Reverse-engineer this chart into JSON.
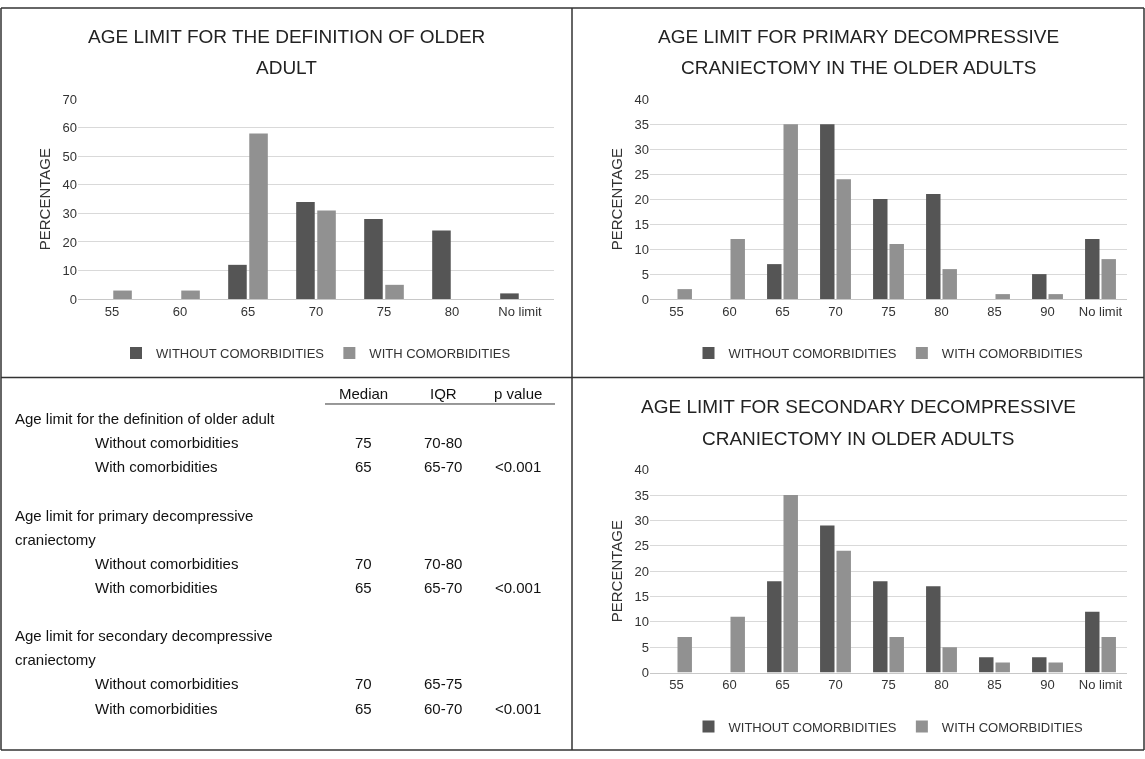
{
  "chart_data": [
    {
      "type": "bar",
      "title": "AGE LIMIT FOR THE DEFINITION OF OLDER ADULT",
      "ylabel": "PERCENTAGE",
      "categories": [
        "55",
        "60",
        "65",
        "70",
        "75",
        "80",
        "No limit"
      ],
      "series": [
        {
          "name": "WITHOUT COMORBIDITIES",
          "color": "#555555",
          "values": [
            0,
            0,
            12,
            34,
            28,
            24,
            2
          ]
        },
        {
          "name": "WITH COMORBIDITIES",
          "color": "#919191",
          "values": [
            3,
            3,
            58,
            31,
            5,
            0,
            0
          ]
        }
      ],
      "ylim": [
        0,
        70
      ],
      "yticks": [
        0,
        10,
        20,
        30,
        40,
        50,
        60,
        70
      ],
      "grid": "y",
      "legend": "bottom"
    },
    {
      "type": "bar",
      "title": "AGE LIMIT FOR PRIMARY DECOMPRESSIVE CRANIECTOMY IN THE OLDER ADULTS",
      "ylabel": "PERCENTAGE",
      "categories": [
        "55",
        "60",
        "65",
        "70",
        "75",
        "80",
        "85",
        "90",
        "No limit"
      ],
      "series": [
        {
          "name": "WITHOUT COMORBIDITIES",
          "color": "#555555",
          "values": [
            0,
            0,
            7,
            35,
            20,
            21,
            0,
            5,
            12
          ]
        },
        {
          "name": "WITH COMORBIDITIES",
          "color": "#919191",
          "values": [
            2,
            12,
            35,
            24,
            11,
            6,
            1,
            1,
            8
          ]
        }
      ],
      "ylim": [
        0,
        40
      ],
      "yticks": [
        0,
        5,
        10,
        15,
        20,
        25,
        30,
        35,
        40
      ],
      "grid": "y",
      "legend": "bottom"
    },
    {
      "type": "other",
      "categories": [
        "Median",
        "IQR",
        "p value"
      ],
      "y_categories": [
        "Age limit for the definition of older adult",
        "Without comorbidities",
        "With comorbidities",
        "Age limit for primary decompressive craniectomy",
        "Without comorbidities",
        "With comorbidities",
        "Age limit for secondary decompressive craniectomy",
        "Without comorbidities",
        "With comorbidities"
      ],
      "cell_labels": [
        [
          null,
          null,
          null
        ],
        [
          "75",
          "70-80",
          null
        ],
        [
          "65",
          "65-70",
          "<0.001"
        ],
        [
          null,
          null,
          null
        ],
        [
          "70",
          "70-80",
          null
        ],
        [
          "65",
          "65-70",
          "<0.001"
        ],
        [
          null,
          null,
          null
        ],
        [
          "70",
          "65-75",
          null
        ],
        [
          "65",
          "60-70",
          "<0.001"
        ]
      ]
    },
    {
      "type": "bar",
      "title": "AGE LIMIT FOR SECONDARY DECOMPRESSIVE CRANIECTOMY IN OLDER ADULTS",
      "ylabel": "PERCENTAGE",
      "categories": [
        "55",
        "60",
        "65",
        "70",
        "75",
        "80",
        "85",
        "90",
        "No limit"
      ],
      "series": [
        {
          "name": "WITHOUT COMORBIDITIES",
          "color": "#555555",
          "values": [
            0,
            0,
            18,
            29,
            18,
            17,
            3,
            3,
            12
          ]
        },
        {
          "name": "WITH COMORBIDITIES",
          "color": "#919191",
          "values": [
            7,
            11,
            35,
            24,
            7,
            5,
            2,
            2,
            7
          ]
        }
      ],
      "ylim": [
        0,
        40
      ],
      "yticks": [
        0,
        5,
        10,
        15,
        20,
        25,
        30,
        35,
        40
      ],
      "grid": "y",
      "legend": "bottom"
    }
  ]
}
